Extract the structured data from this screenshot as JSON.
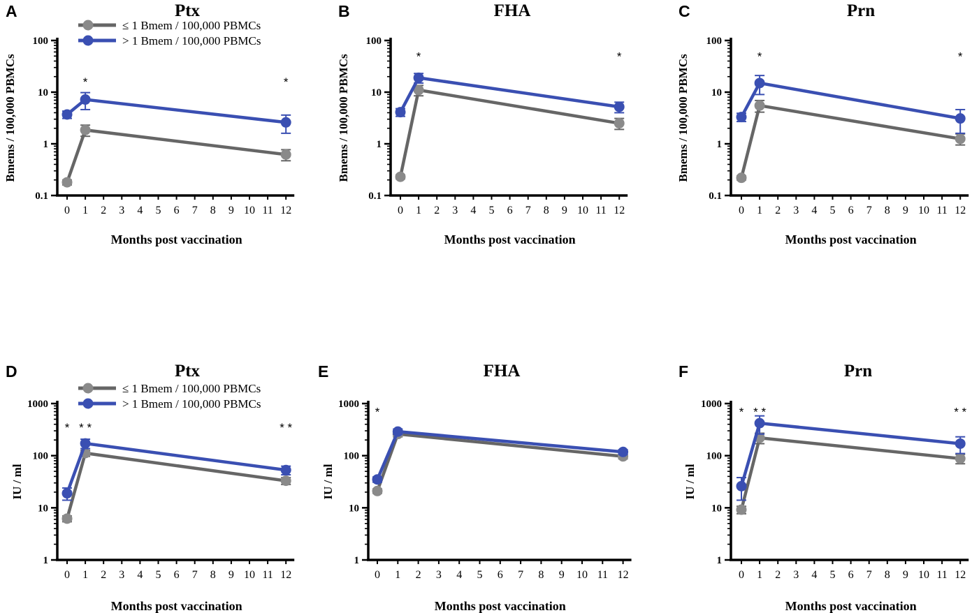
{
  "figure": {
    "xtick_labels": [
      "0",
      "1",
      "2",
      "3",
      "4",
      "5",
      "6",
      "7",
      "8",
      "9",
      "10",
      "11",
      "12"
    ],
    "xlabel": "Months post vaccination",
    "legend": {
      "low": "≤ 1 Bmem / 100,000 PBMCs",
      "high": "> 1 Bmem / 100,000 PBMCs"
    },
    "colors": {
      "low": "#666666",
      "low_marker": "#8a8a8a",
      "high": "#3a4fb2"
    }
  },
  "chart_data": [
    {
      "id": "A",
      "type": "line",
      "title": "Ptx",
      "ylabel": "Bmems / 100,000 PBMCs",
      "xlabel": "Months post vaccination",
      "yscale": "log",
      "ylim": [
        0.1,
        100
      ],
      "xlim": [
        0,
        12
      ],
      "ytick_labels": [
        "0.1",
        "1",
        "10",
        "100"
      ],
      "x": [
        0,
        1,
        12
      ],
      "series": [
        {
          "name": "≤ 1 Bmem / 100,000 PBMCs",
          "values": [
            0.18,
            1.85,
            0.62
          ],
          "err": [
            0.02,
            0.45,
            0.15
          ]
        },
        {
          "name": "> 1 Bmem / 100,000 PBMCs",
          "values": [
            3.7,
            7.2,
            2.6
          ],
          "err": [
            0.6,
            2.6,
            1.0
          ]
        }
      ],
      "annotations": [
        {
          "x": 1,
          "y": 16,
          "text": "*"
        },
        {
          "x": 12,
          "y": 16,
          "text": "*"
        }
      ],
      "legend": "top-left"
    },
    {
      "id": "B",
      "type": "line",
      "title": "FHA",
      "ylabel": "Bmems / 100,000 PBMCs",
      "xlabel": "Months post vaccination",
      "yscale": "log",
      "ylim": [
        0.1,
        100
      ],
      "xlim": [
        0,
        12
      ],
      "ytick_labels": [
        "0.1",
        "1",
        "10",
        "100"
      ],
      "x": [
        0,
        1,
        12
      ],
      "series": [
        {
          "name": "≤ 1 Bmem / 100,000 PBMCs",
          "values": [
            0.23,
            11,
            2.5
          ],
          "err": [
            0.02,
            2.5,
            0.6
          ]
        },
        {
          "name": "> 1 Bmem / 100,000 PBMCs",
          "values": [
            4.1,
            19,
            5.2
          ],
          "err": [
            0.7,
            4.0,
            1.2
          ]
        }
      ],
      "annotations": [
        {
          "x": 1,
          "y": 50,
          "text": "*"
        },
        {
          "x": 12,
          "y": 50,
          "text": "*"
        }
      ]
    },
    {
      "id": "C",
      "type": "line",
      "title": "Prn",
      "ylabel": "Bmems / 100,000 PBMCs",
      "xlabel": "Months post vaccination",
      "yscale": "log",
      "ylim": [
        0.1,
        100
      ],
      "xlim": [
        0,
        12
      ],
      "ytick_labels": [
        "0.1",
        "1",
        "10",
        "100"
      ],
      "x": [
        0,
        1,
        12
      ],
      "series": [
        {
          "name": "≤ 1 Bmem / 100,000 PBMCs",
          "values": [
            0.22,
            5.5,
            1.25
          ],
          "err": [
            0.02,
            1.4,
            0.3
          ]
        },
        {
          "name": "> 1 Bmem / 100,000 PBMCs",
          "values": [
            3.3,
            15,
            3.1
          ],
          "err": [
            0.6,
            6.0,
            1.5
          ]
        }
      ],
      "annotations": [
        {
          "x": 1,
          "y": 50,
          "text": "*"
        },
        {
          "x": 12,
          "y": 50,
          "text": "*"
        }
      ]
    },
    {
      "id": "D",
      "type": "line",
      "title": "Ptx",
      "ylabel": "IU / ml",
      "xlabel": "Months post vaccination",
      "yscale": "log",
      "ylim": [
        1,
        1000
      ],
      "xlim": [
        0,
        12
      ],
      "ytick_labels": [
        "1",
        "10",
        "100",
        "1000"
      ],
      "x": [
        0,
        1,
        12
      ],
      "series": [
        {
          "name": "≤ 1 Bmem / 100,000 PBMCs",
          "values": [
            6.2,
            112,
            33
          ],
          "err": [
            0.8,
            15,
            5
          ]
        },
        {
          "name": "> 1 Bmem / 100,000 PBMCs",
          "values": [
            19,
            172,
            53
          ],
          "err": [
            5,
            35,
            10
          ]
        }
      ],
      "annotations": [
        {
          "x": 0,
          "y": 350,
          "text": "*"
        },
        {
          "x": 1,
          "y": 350,
          "text": "* *"
        },
        {
          "x": 12,
          "y": 350,
          "text": "* *"
        }
      ],
      "legend": "top-left"
    },
    {
      "id": "E",
      "type": "line",
      "title": "FHA",
      "ylabel": "IU / ml",
      "xlabel": "Months post vaccination",
      "yscale": "log",
      "ylim": [
        1,
        1000
      ],
      "xlim": [
        0,
        12
      ],
      "ytick_labels": [
        "1",
        "10",
        "100",
        "1000"
      ],
      "x": [
        0,
        1,
        12
      ],
      "series": [
        {
          "name": "≤ 1 Bmem / 100,000 PBMCs",
          "values": [
            21,
            260,
            97
          ],
          "err": [
            2,
            30,
            10
          ]
        },
        {
          "name": "> 1 Bmem / 100,000 PBMCs",
          "values": [
            35,
            290,
            118
          ],
          "err": [
            4,
            35,
            12
          ]
        }
      ],
      "annotations": [
        {
          "x": 0,
          "y": 700,
          "text": "*"
        }
      ]
    },
    {
      "id": "F",
      "type": "line",
      "title": "Prn",
      "ylabel": "IU / ml",
      "xlabel": "Months post vaccination",
      "yscale": "log",
      "ylim": [
        1,
        1000
      ],
      "xlim": [
        0,
        12
      ],
      "ytick_labels": [
        "1",
        "10",
        "100",
        "1000"
      ],
      "x": [
        0,
        1,
        12
      ],
      "series": [
        {
          "name": "≤ 1 Bmem / 100,000 PBMCs",
          "values": [
            9.2,
            220,
            88
          ],
          "err": [
            1.5,
            50,
            18
          ]
        },
        {
          "name": "> 1 Bmem / 100,000 PBMCs",
          "values": [
            26,
            420,
            170
          ],
          "err": [
            12,
            160,
            60
          ]
        }
      ],
      "annotations": [
        {
          "x": 0,
          "y": 700,
          "text": "*"
        },
        {
          "x": 1,
          "y": 700,
          "text": "* *"
        },
        {
          "x": 12,
          "y": 700,
          "text": "* *"
        }
      ]
    }
  ]
}
